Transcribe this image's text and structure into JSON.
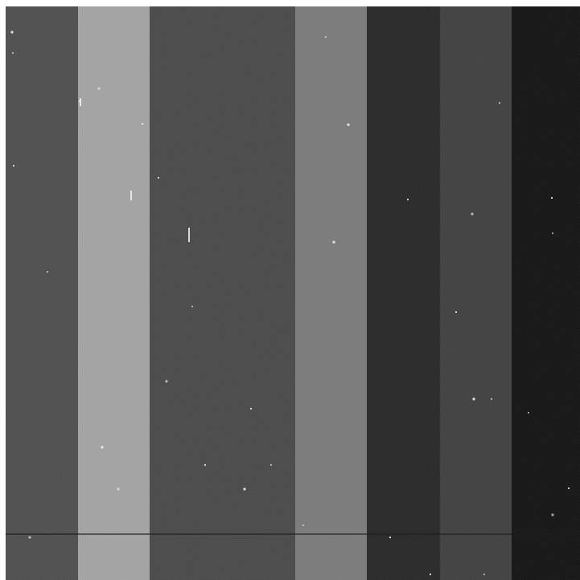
{
  "image": {
    "kind": "grayscale astronomical detector frame",
    "stripe_colors": [
      "#4d4d4d",
      "#a3a3a3",
      "#484848",
      "#7a7a7a",
      "#262626",
      "#3f3f3f",
      "#121212"
    ],
    "background": "#ffffff",
    "seam_color": "#1f1f1f",
    "speck_color": "#f2f2f2"
  }
}
